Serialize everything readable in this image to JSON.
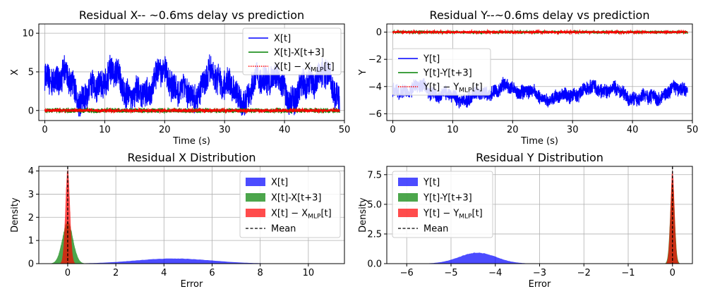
{
  "colors": {
    "x_t": "#0000ff",
    "diff": "#008000",
    "mlp": "#ff0000",
    "mean": "#000000",
    "grid": "#b0b0b0"
  },
  "chart_data": [
    {
      "type": "line",
      "title": "Residual X-- ~0.6ms delay vs prediction",
      "xlabel": "Time (s)",
      "ylabel": "X",
      "xlim": [
        -1,
        50
      ],
      "ylim": [
        -1.3,
        11.2
      ],
      "xticks": [
        0,
        10,
        20,
        30,
        40,
        50
      ],
      "yticks": [
        0,
        5,
        10
      ],
      "legend": {
        "position": "top-right"
      },
      "series": [
        {
          "name": "X[t]",
          "color": "#0000ff",
          "style": "solid",
          "noise": {
            "base": 3.2,
            "amplitude": 2.6,
            "spread": 2.2,
            "min": -0.8,
            "max": 10.7
          }
        },
        {
          "name": "X[t]-X[t+3]",
          "color": "#008000",
          "style": "solid",
          "noise": {
            "base": 0,
            "amplitude": 0,
            "spread": 0.35,
            "min": -0.5,
            "max": 0.5
          }
        },
        {
          "name_prefix": "X[t] − X",
          "name_sub": "MLP",
          "name_suffix": "[t]",
          "color": "#ff0000",
          "style": "dotted",
          "noise": {
            "base": 0,
            "amplitude": 0,
            "spread": 0.25,
            "min": -0.35,
            "max": 0.35
          }
        }
      ]
    },
    {
      "type": "line",
      "title": "Residual Y--~0.6ms delay vs prediction",
      "xlabel": "Time (s)",
      "ylabel": "Y",
      "xlim": [
        -1,
        50
      ],
      "ylim": [
        -6.5,
        0.6
      ],
      "xticks": [
        0,
        10,
        20,
        30,
        40,
        50
      ],
      "yticks": [
        -6,
        -4,
        -2,
        0
      ],
      "legend": {
        "position": "center-left"
      },
      "series": [
        {
          "name": "Y[t]",
          "color": "#0000ff",
          "style": "solid",
          "noise": {
            "base": -4.5,
            "amplitude": 0.7,
            "spread": 0.6,
            "min": -6.1,
            "max": -2.8
          }
        },
        {
          "name": "Y[t]-Y[t+3]",
          "color": "#008000",
          "style": "solid",
          "noise": {
            "base": 0,
            "amplitude": 0,
            "spread": 0.12,
            "min": -0.2,
            "max": 0.2
          }
        },
        {
          "name_prefix": "Y[t] − Y",
          "name_sub": "MLP",
          "name_suffix": "[t]",
          "color": "#ff0000",
          "style": "dotted",
          "noise": {
            "base": 0,
            "amplitude": 0,
            "spread": 0.1,
            "min": -0.15,
            "max": 0.15
          }
        }
      ]
    },
    {
      "type": "area",
      "title": "Residual X Distribution",
      "xlabel": "Error",
      "ylabel": "Density",
      "xlim": [
        -1.2,
        11.5
      ],
      "ylim": [
        0,
        4.2
      ],
      "xticks": [
        0,
        2,
        4,
        6,
        8,
        10
      ],
      "yticks": [
        0,
        1,
        2,
        3,
        4
      ],
      "legend": {
        "position": "top-right"
      },
      "series": [
        {
          "name": "X[t]",
          "color": "#0000ff",
          "mean": 4.4,
          "std": 1.6,
          "peak": 0.22,
          "xmin": 0.6,
          "xmax": 10.9
        },
        {
          "name": "X[t]-X[t+3]",
          "color": "#008000",
          "mean": 0.0,
          "std": 0.22,
          "peak": 1.8,
          "xmin": -0.8,
          "xmax": 0.8
        },
        {
          "name_prefix": "X[t] − X",
          "name_sub": "MLP",
          "name_suffix": "[t]",
          "color": "#ff0000",
          "mean": 0.0,
          "std": 0.095,
          "peak": 4.1,
          "xmin": -0.45,
          "xmax": 0.45
        }
      ],
      "mean_line": {
        "name": "Mean",
        "x": 0.0
      }
    },
    {
      "type": "area",
      "title": "Residual Y Distribution",
      "xlabel": "Error",
      "ylabel": "Density",
      "xlim": [
        -6.45,
        0.45
      ],
      "ylim": [
        0,
        8.2
      ],
      "xticks": [
        -6,
        -5,
        -4,
        -3,
        -2,
        -1,
        0
      ],
      "yticks": [
        0.0,
        2.5,
        5.0,
        7.5
      ],
      "legend": {
        "position": "top-left"
      },
      "series": [
        {
          "name": "Y[t]",
          "color": "#0000ff",
          "mean": -4.4,
          "std": 0.42,
          "peak": 0.92,
          "xmin": -6.2,
          "xmax": -2.7
        },
        {
          "name": "Y[t]-Y[t+3]",
          "color": "#008000",
          "mean": 0.0,
          "std": 0.05,
          "peak": 7.0,
          "xmin": -0.25,
          "xmax": 0.25
        },
        {
          "name_prefix": "Y[t] − Y",
          "name_sub": "MLP",
          "name_suffix": "[t]",
          "color": "#ff0000",
          "mean": 0.0,
          "std": 0.045,
          "peak": 7.9,
          "xmin": -0.2,
          "xmax": 0.2
        }
      ],
      "mean_line": {
        "name": "Mean",
        "x": 0.0
      }
    }
  ]
}
